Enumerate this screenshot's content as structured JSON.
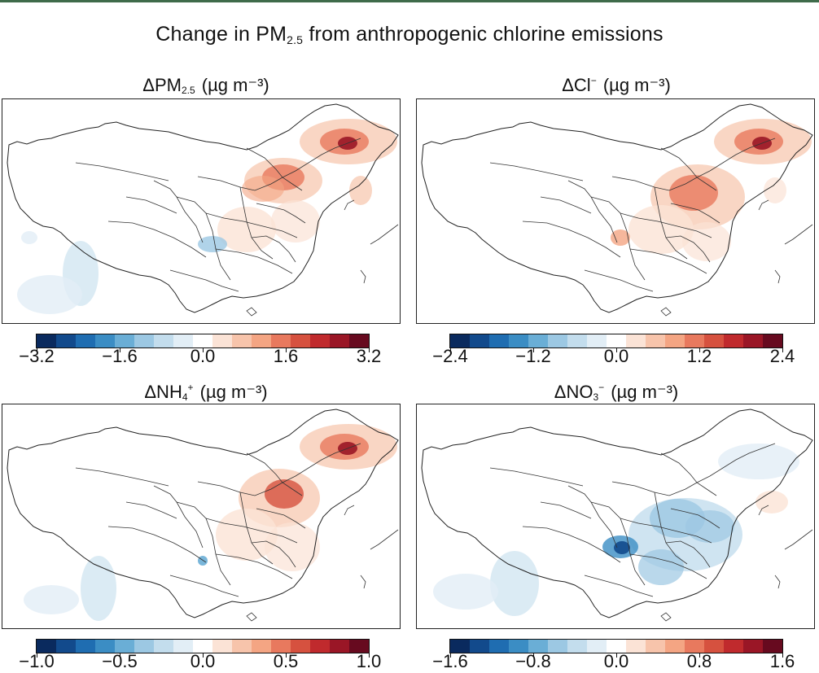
{
  "title": {
    "prefix": "Change in PM",
    "sub": "2.5",
    "suffix": " from anthropogenic chlorine emissions"
  },
  "panels": [
    {
      "id": "pm25",
      "label": {
        "delta": "ΔPM",
        "sub": "2.5",
        "sup": "",
        "units": "(µg m⁻³)"
      },
      "colorbar": {
        "ticks": [
          "−3.2",
          "−1.6",
          "0.0",
          "1.6",
          "3.2"
        ],
        "min": -3.2,
        "max": 3.2
      }
    },
    {
      "id": "cl",
      "label": {
        "delta": "ΔCl",
        "sub": "",
        "sup": "−",
        "units": "(µg m⁻³)"
      },
      "colorbar": {
        "ticks": [
          "−2.4",
          "−1.2",
          "0.0",
          "1.2",
          "2.4"
        ],
        "min": -2.4,
        "max": 2.4
      }
    },
    {
      "id": "nh4",
      "label": {
        "delta": "ΔNH",
        "sub": "4",
        "sup": "+",
        "units": "(µg m⁻³)"
      },
      "colorbar": {
        "ticks": [
          "−1.0",
          "−0.5",
          "0.0",
          "0.5",
          "1.0"
        ],
        "min": -1.0,
        "max": 1.0
      }
    },
    {
      "id": "no3",
      "label": {
        "delta": "ΔNO",
        "sub": "3",
        "sup": "−",
        "units": "(µg m⁻³)"
      },
      "colorbar": {
        "ticks": [
          "−1.6",
          "−0.8",
          "0.0",
          "0.8",
          "1.6"
        ],
        "min": -1.6,
        "max": 1.6
      }
    }
  ],
  "colors": {
    "palette": [
      "#0a2a5e",
      "#124a8c",
      "#1f6db1",
      "#3b8dc4",
      "#6aaed6",
      "#9cc8e3",
      "#c3dded",
      "#e2eef6",
      "#ffffff",
      "#fbe3d6",
      "#f7c4ab",
      "#f4a583",
      "#e8795e",
      "#d6513f",
      "#c02a2d",
      "#9a1626",
      "#670a1f"
    ],
    "positive_hot": "#8b0a1f",
    "negative_deep": "#0a3a7a",
    "border": "#222222"
  }
}
